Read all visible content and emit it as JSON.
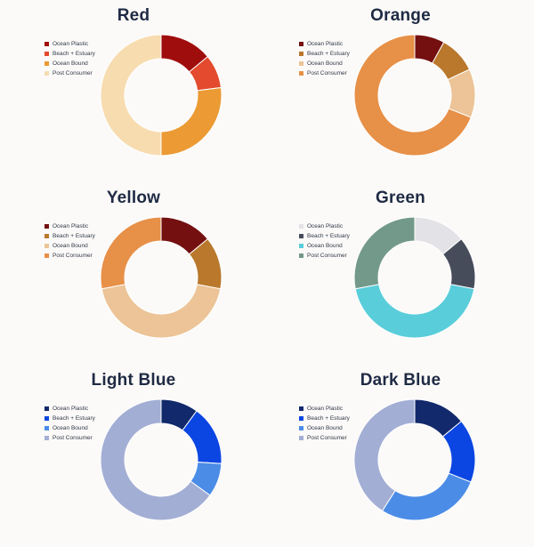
{
  "legend_labels": [
    "Ocean Plastic",
    "Beach + Estuary",
    "Ocean Bound",
    "Post Consumer"
  ],
  "chart_data": [
    {
      "type": "pie",
      "title": "Red",
      "categories": [
        "Ocean Plastic",
        "Beach + Estuary",
        "Ocean Bound",
        "Post Consumer"
      ],
      "values": [
        14,
        9,
        27,
        50
      ],
      "colors": [
        "#a00d0d",
        "#e34a2e",
        "#eb9a34",
        "#f7dcb0"
      ],
      "donut": true
    },
    {
      "type": "pie",
      "title": "Orange",
      "categories": [
        "Ocean Plastic",
        "Beach + Estuary",
        "Ocean Bound",
        "Post Consumer"
      ],
      "values": [
        8,
        10,
        13,
        69
      ],
      "colors": [
        "#741010",
        "#b9782c",
        "#ecc497",
        "#e79048"
      ],
      "donut": true
    },
    {
      "type": "pie",
      "title": "Yellow",
      "categories": [
        "Ocean Plastic",
        "Beach + Estuary",
        "Ocean Bound",
        "Post Consumer"
      ],
      "values": [
        14,
        14,
        44,
        28
      ],
      "colors": [
        "#741010",
        "#b9782c",
        "#ecc497",
        "#e79048"
      ],
      "donut": true
    },
    {
      "type": "pie",
      "title": "Green",
      "categories": [
        "Ocean Plastic",
        "Beach + Estuary",
        "Ocean Bound",
        "Post Consumer"
      ],
      "values": [
        14,
        14,
        44,
        28
      ],
      "colors": [
        "#e3e2e6",
        "#474c5a",
        "#5acdda",
        "#73998a"
      ],
      "donut": true
    },
    {
      "type": "pie",
      "title": "Light Blue",
      "categories": [
        "Ocean Plastic",
        "Beach + Estuary",
        "Ocean Bound",
        "Post Consumer"
      ],
      "values": [
        10,
        16,
        9,
        65
      ],
      "colors": [
        "#12296b",
        "#0c46e2",
        "#4b8ce6",
        "#a3aed4"
      ],
      "donut": true
    },
    {
      "type": "pie",
      "title": "Dark Blue",
      "categories": [
        "Ocean Plastic",
        "Beach + Estuary",
        "Ocean Bound",
        "Post Consumer"
      ],
      "values": [
        14,
        17,
        28,
        41
      ],
      "colors": [
        "#12296b",
        "#0c46e2",
        "#4b8ce6",
        "#a3aed4"
      ],
      "donut": true
    }
  ]
}
